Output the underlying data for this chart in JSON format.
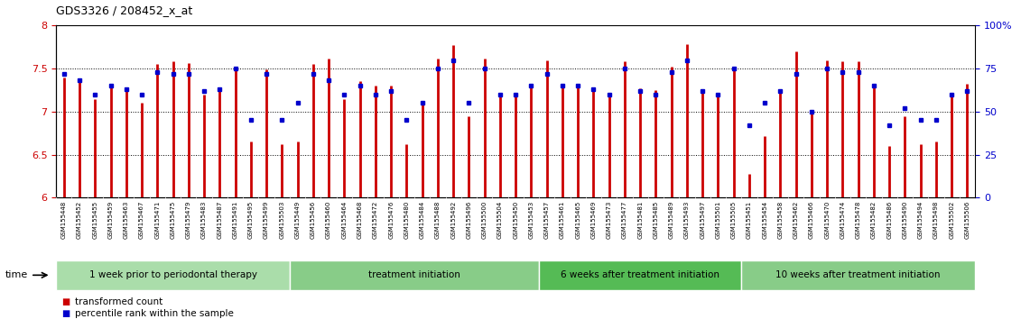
{
  "title": "GDS3326 / 208452_x_at",
  "samples": [
    "GSM155448",
    "GSM155452",
    "GSM155455",
    "GSM155459",
    "GSM155463",
    "GSM155467",
    "GSM155471",
    "GSM155475",
    "GSM155479",
    "GSM155483",
    "GSM155487",
    "GSM155491",
    "GSM155495",
    "GSM155499",
    "GSM155503",
    "GSM155449",
    "GSM155456",
    "GSM155460",
    "GSM155464",
    "GSM155468",
    "GSM155472",
    "GSM155476",
    "GSM155480",
    "GSM155484",
    "GSM155488",
    "GSM155492",
    "GSM155496",
    "GSM155500",
    "GSM155504",
    "GSM155450",
    "GSM155453",
    "GSM155457",
    "GSM155461",
    "GSM155465",
    "GSM155469",
    "GSM155473",
    "GSM155477",
    "GSM155481",
    "GSM155485",
    "GSM155489",
    "GSM155493",
    "GSM155497",
    "GSM155501",
    "GSM155505",
    "GSM155451",
    "GSM155454",
    "GSM155458",
    "GSM155462",
    "GSM155466",
    "GSM155470",
    "GSM155474",
    "GSM155478",
    "GSM155482",
    "GSM155486",
    "GSM155490",
    "GSM155494",
    "GSM155498",
    "GSM155502",
    "GSM155506"
  ],
  "bar_values": [
    7.4,
    7.35,
    7.15,
    7.3,
    7.28,
    7.1,
    7.55,
    7.58,
    7.56,
    7.2,
    7.27,
    7.5,
    6.65,
    7.49,
    6.62,
    6.65,
    7.55,
    7.62,
    7.15,
    7.35,
    7.3,
    7.3,
    6.62,
    7.1,
    7.62,
    7.77,
    6.95,
    7.62,
    7.2,
    7.2,
    7.32,
    7.6,
    7.3,
    7.3,
    7.25,
    7.22,
    7.58,
    7.27,
    7.25,
    7.52,
    7.78,
    7.23,
    7.2,
    7.5,
    6.28,
    6.72,
    7.25,
    7.7,
    7.0,
    7.6,
    7.58,
    7.58,
    7.28,
    6.6,
    6.95,
    6.62,
    6.65,
    7.2,
    7.32
  ],
  "percentile_values": [
    72,
    68,
    60,
    65,
    63,
    60,
    73,
    72,
    72,
    62,
    63,
    75,
    45,
    72,
    45,
    55,
    72,
    68,
    60,
    65,
    60,
    62,
    45,
    55,
    75,
    80,
    55,
    75,
    60,
    60,
    65,
    72,
    65,
    65,
    63,
    60,
    75,
    62,
    60,
    73,
    80,
    62,
    60,
    75,
    42,
    55,
    62,
    72,
    50,
    75,
    73,
    73,
    65,
    42,
    52,
    45,
    45,
    60,
    62
  ],
  "groups": [
    {
      "label": "1 week prior to periodontal therapy",
      "start": 0,
      "end": 15,
      "color": "#aaddaa"
    },
    {
      "label": "treatment initiation",
      "start": 15,
      "end": 31,
      "color": "#88cc88"
    },
    {
      "label": "6 weeks after treatment initiation",
      "start": 31,
      "end": 44,
      "color": "#55bb55"
    },
    {
      "label": "10 weeks after treatment initiation",
      "start": 44,
      "end": 59,
      "color": "#88cc88"
    }
  ],
  "ylim": [
    6.0,
    8.0
  ],
  "yticks": [
    6.0,
    6.5,
    7.0,
    7.5,
    8.0
  ],
  "right_yticks": [
    0,
    25,
    50,
    75,
    100
  ],
  "right_ytick_labels": [
    "0",
    "25",
    "50",
    "75",
    "100%"
  ],
  "bar_color": "#cc0000",
  "dot_color": "#0000cc",
  "bg_color": "#ffffff"
}
